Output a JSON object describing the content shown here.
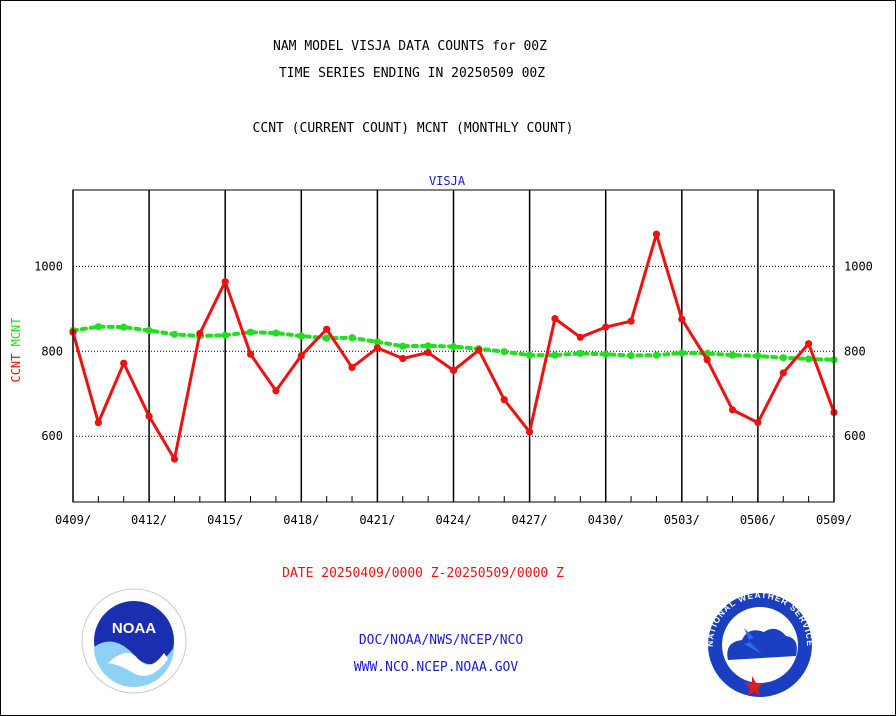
{
  "header": {
    "title_line1": "NAM MODEL VISJA DATA COUNTS for 00Z",
    "title_line2": "TIME SERIES ENDING IN 20250509 00Z",
    "subtitle": "CCNT (CURRENT COUNT) MCNT (MONTHLY COUNT)"
  },
  "footer": {
    "date_range": "DATE 20250409/0000 Z-20250509/0000 Z",
    "org_line": "DOC/NOAA/NWS/NCEP/NCO",
    "url_line": "WWW.NCO.NCEP.NOAA.GOV"
  },
  "logos": {
    "noaa_text": "NOAA",
    "nws_text": "NATIONAL WEATHER SERVICE"
  },
  "colors": {
    "ccnt": "#ee1111",
    "mcnt": "#22dd22",
    "label_blue": "#1a1ad6",
    "date_red": "#ee1111"
  },
  "chart_data": {
    "type": "line",
    "title": "VISJA",
    "ylabel_left_parts": [
      "CCNT",
      "MCNT"
    ],
    "x": [
      "0409/",
      "0410/",
      "0411/",
      "0412/",
      "0413/",
      "0414/",
      "0415/",
      "0416/",
      "0417/",
      "0418/",
      "0419/",
      "0420/",
      "0421/",
      "0422/",
      "0423/",
      "0424/",
      "0425/",
      "0426/",
      "0427/",
      "0428/",
      "0429/",
      "0430/",
      "0501/",
      "0502/",
      "0503/",
      "0504/",
      "0505/",
      "0506/",
      "0507/",
      "0508/",
      "0509/"
    ],
    "x_tick_labels": [
      "0409/",
      "0412/",
      "0415/",
      "0418/",
      "0421/",
      "0424/",
      "0427/",
      "0430/",
      "0503/",
      "0506/",
      "0509/"
    ],
    "ylim": [
      445,
      1180
    ],
    "y_ticks": [
      600,
      800,
      1000
    ],
    "grid": true,
    "series": [
      {
        "name": "CCNT",
        "values": [
          845,
          632,
          772,
          647,
          546,
          842,
          964,
          793,
          707,
          790,
          852,
          762,
          808,
          783,
          797,
          755,
          803,
          686,
          610,
          877,
          833,
          857,
          871,
          1076,
          876,
          780,
          662,
          632,
          749,
          818,
          656
        ]
      },
      {
        "name": "MCNT",
        "values": [
          849,
          858,
          857,
          849,
          840,
          836,
          838,
          845,
          843,
          836,
          831,
          832,
          822,
          812,
          813,
          811,
          806,
          799,
          791,
          791,
          795,
          793,
          790,
          791,
          796,
          795,
          791,
          789,
          785,
          782,
          780
        ]
      }
    ]
  }
}
